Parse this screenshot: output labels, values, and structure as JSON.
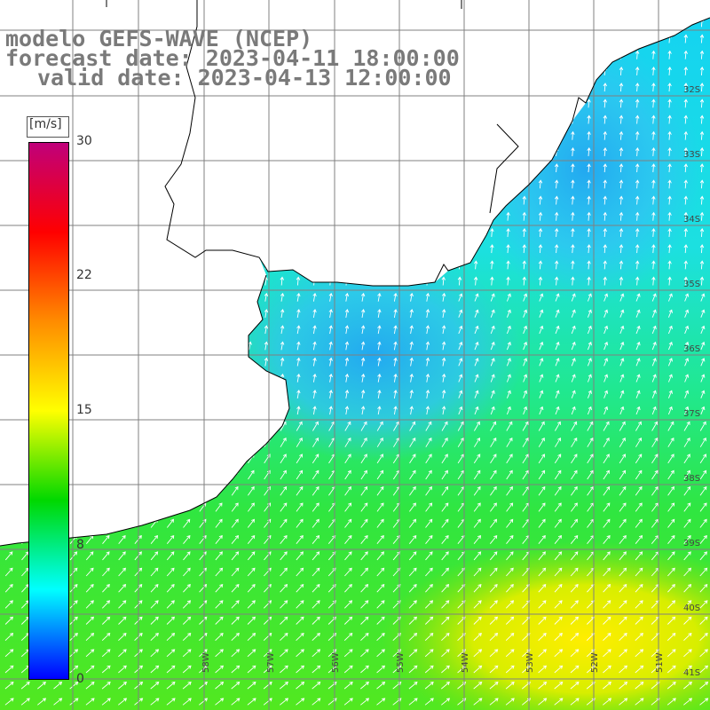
{
  "title": {
    "line1": "modelo GEFS-WAVE (NCEP)",
    "line2": "forecast date: 2023-04-11 18:00:00",
    "line3": "valid date: 2023-04-13 12:00:00"
  },
  "colorbar": {
    "units": "[m/s]",
    "ticks": [
      {
        "label": "30",
        "value": 30
      },
      {
        "label": "22",
        "value": 22
      },
      {
        "label": "15",
        "value": 15
      },
      {
        "label": "8",
        "value": 8
      },
      {
        "label": "0",
        "value": 0
      }
    ],
    "min": 0,
    "max": 30,
    "colors": [
      "#0000ff",
      "#00ffff",
      "#00d800",
      "#ffff00",
      "#ff8c00",
      "#ff0000",
      "#c0007a"
    ]
  },
  "map": {
    "lat_labels": [
      "32S",
      "33S",
      "34S",
      "35S",
      "36S",
      "37S",
      "38S",
      "39S",
      "40S",
      "41S"
    ],
    "lon_labels": [
      "58W",
      "57W",
      "56W",
      "55W",
      "54W",
      "53W",
      "52W",
      "51W"
    ],
    "land_color": "#ffffff",
    "grid_color": "#808080",
    "coast_color": "#000000",
    "arrow_color": "#ffffff"
  }
}
